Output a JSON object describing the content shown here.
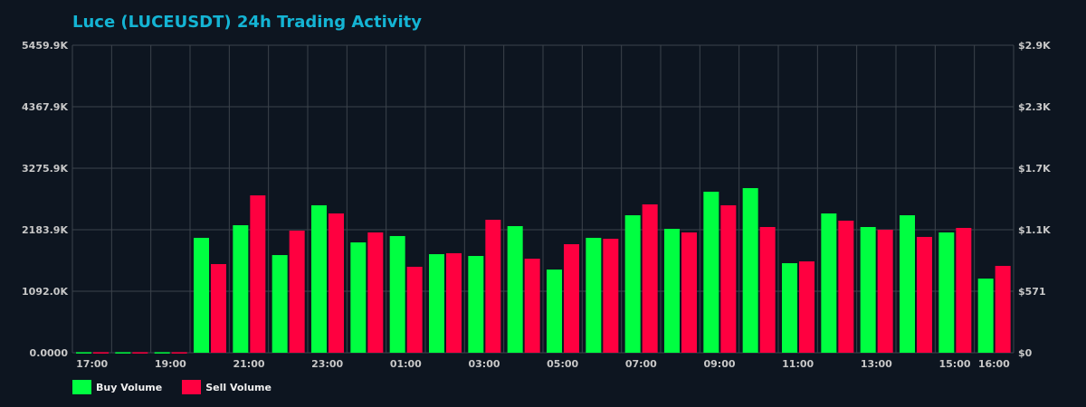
{
  "chart_data": {
    "type": "bar",
    "title": "Luce (LUCEUSDT) 24h Trading Activity",
    "categories": [
      "17:00",
      "18:00",
      "19:00",
      "20:00",
      "21:00",
      "22:00",
      "23:00",
      "00:00",
      "01:00",
      "02:00",
      "03:00",
      "04:00",
      "05:00",
      "06:00",
      "07:00",
      "08:00",
      "09:00",
      "10:00",
      "11:00",
      "12:00",
      "13:00",
      "14:00",
      "15:00",
      "16:00"
    ],
    "x_tick_labels": [
      "17:00",
      "19:00",
      "21:00",
      "23:00",
      "01:00",
      "03:00",
      "05:00",
      "07:00",
      "09:00",
      "11:00",
      "13:00",
      "15:00",
      "16:00"
    ],
    "x_tick_categories": [
      "17:00",
      "19:00",
      "21:00",
      "23:00",
      "01:00",
      "03:00",
      "05:00",
      "07:00",
      "09:00",
      "11:00",
      "13:00",
      "15:00",
      "16:00"
    ],
    "y_unit": "K",
    "ylim": [
      0,
      5459.9
    ],
    "y_tick_labels": [
      "0.0000",
      "1092.0K",
      "2183.9K",
      "3275.9K",
      "4367.9K",
      "5459.9K"
    ],
    "y_ticks": [
      0,
      1092.0,
      2183.9,
      3275.9,
      4367.9,
      5459.9
    ],
    "y2_tick_labels": [
      "$0",
      "$571",
      "$1.1K",
      "$1.7K",
      "$2.3K",
      "$2.9K"
    ],
    "grid": true,
    "legend_position": "bottom-left",
    "series": [
      {
        "name": "Buy Volume",
        "color": "#00ff41",
        "values": [
          10,
          10,
          10,
          2040,
          2264,
          1734,
          2618,
          1959,
          2072,
          1750,
          1718,
          2248,
          1477,
          2040,
          2441,
          2200,
          2859,
          2923,
          1590,
          2473,
          2232,
          2441,
          2136,
          1317
        ]
      },
      {
        "name": "Sell Volume",
        "color": "#ff0040",
        "values": [
          10,
          10,
          10,
          1574,
          2794,
          2168,
          2473,
          2136,
          1526,
          1767,
          2361,
          1670,
          1927,
          2024,
          2634,
          2136,
          2618,
          2232,
          1622,
          2345,
          2184,
          2056,
          2216,
          1542
        ]
      }
    ]
  }
}
